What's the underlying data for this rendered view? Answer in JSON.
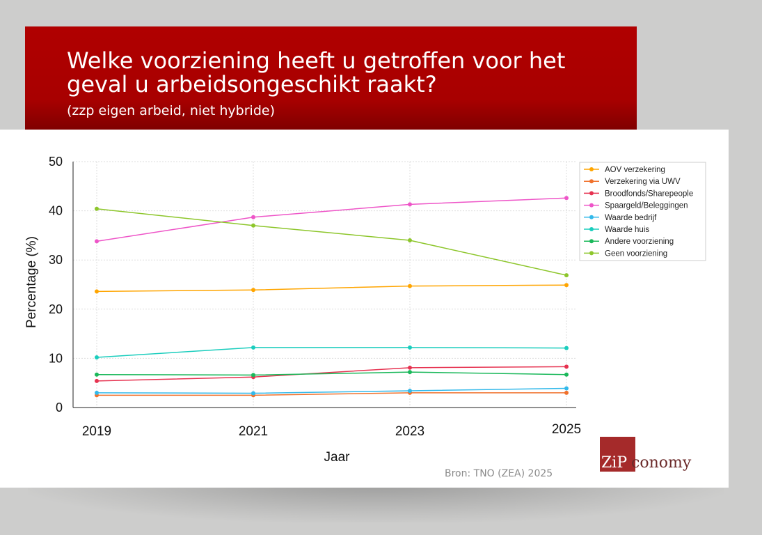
{
  "header": {
    "title": "Welke voorziening heeft u getroffen voor het geval u arbeidsongeschikt raakt?",
    "subtitle": "(zzp eigen arbeid, niet hybride)"
  },
  "source": "Bron: TNO (ZEA) 2025",
  "logo": {
    "box_text": "ZiP",
    "rest_text": "conomy"
  },
  "colors": {
    "banner": "#b00000",
    "logo": "#a52a2a"
  },
  "chart_data": {
    "type": "line",
    "title": "",
    "xlabel": "Jaar",
    "ylabel": "Percentage (%)",
    "x": [
      2019,
      2021,
      2023,
      2025
    ],
    "xticks": [
      "2019",
      "2021",
      "2023",
      "2025"
    ],
    "yticks": [
      0,
      10,
      20,
      30,
      40,
      50
    ],
    "ylim": [
      0,
      50
    ],
    "grid": true,
    "legend_position": "top-right",
    "series": [
      {
        "name": "AOV verzekering",
        "color": "#ffa500",
        "values": [
          23.6,
          23.9,
          24.7,
          24.9
        ]
      },
      {
        "name": "Verzekering via UWV",
        "color": "#f0712c",
        "values": [
          2.5,
          2.5,
          3.0,
          3.0
        ]
      },
      {
        "name": "Broodfonds/Sharepeople",
        "color": "#e63250",
        "values": [
          5.4,
          6.2,
          8.1,
          8.3
        ]
      },
      {
        "name": "Spaargeld/Beleggingen",
        "color": "#ee55c8",
        "values": [
          33.8,
          38.7,
          41.3,
          42.6
        ]
      },
      {
        "name": "Waarde bedrijf",
        "color": "#33b9ea",
        "values": [
          3.0,
          2.9,
          3.4,
          3.9
        ]
      },
      {
        "name": "Waarde huis",
        "color": "#1acdbd",
        "values": [
          10.2,
          12.2,
          12.2,
          12.1
        ]
      },
      {
        "name": "Andere voorziening",
        "color": "#1ab85a",
        "values": [
          6.7,
          6.6,
          7.2,
          6.7
        ]
      },
      {
        "name": "Geen voorziening",
        "color": "#8dc62b",
        "values": [
          40.4,
          37.0,
          34.0,
          26.9
        ]
      }
    ]
  }
}
